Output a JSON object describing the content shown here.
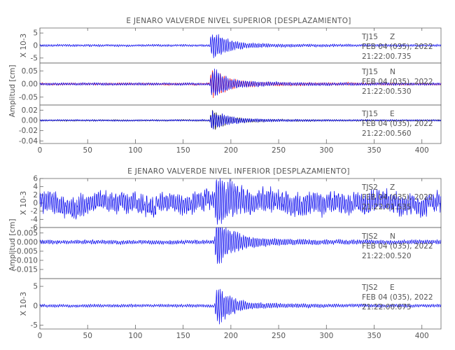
{
  "chart_data": [
    {
      "type": "line",
      "title": "E JENARO VALVERDE NIVEL SUPERIOR [DESPLAZAMIENTO]",
      "xlabel": "",
      "ylabel": "Amplitud [cm]",
      "xlim": [
        0,
        420
      ],
      "xticks": [
        "0",
        "50",
        "100",
        "150",
        "200",
        "250",
        "300",
        "350",
        "400"
      ],
      "grid": false,
      "panels": [
        {
          "name": "TJ15 Z",
          "station_label": "TJ15",
          "component_label": "Z",
          "date_label": "FEB 04 (035), 2022",
          "time_label": "21:22:00.735",
          "scale_label": "X 10-3",
          "ylim": [
            -7,
            7
          ],
          "yticks": [
            "5",
            "0",
            "-5"
          ],
          "series_colors": [
            "#0000ee"
          ],
          "arrival": 178,
          "peak": 7
        },
        {
          "name": "TJ15 N",
          "station_label": "TJ15",
          "component_label": "N",
          "date_label": "FEB 04 (035), 2022",
          "time_label": "21:22:00.530",
          "scale_label": "",
          "ylim": [
            -0.08,
            0.08
          ],
          "yticks": [
            "0.05",
            "0.00",
            "-0.05"
          ],
          "series_colors": [
            "#0000ee",
            "#ff0000"
          ],
          "arrival": 178,
          "peak": 0.075
        },
        {
          "name": "TJ15 E",
          "station_label": "TJ15",
          "component_label": "E",
          "date_label": "FEB 04 (035), 2022",
          "time_label": "21:22:00.560",
          "scale_label": "",
          "ylim": [
            -0.045,
            0.03
          ],
          "yticks": [
            "0.02",
            "0.00",
            "-0.02",
            "-0.04"
          ],
          "series_colors": [
            "#0000ee",
            "#000000"
          ],
          "arrival": 178,
          "peak": 0.025
        }
      ]
    },
    {
      "type": "line",
      "title": "E JENARO VALVERDE NIVEL INFERIOR [DESPLAZAMIENTO]",
      "xlabel": "",
      "ylabel": "Amplitud [cm]",
      "xlim": [
        0,
        420
      ],
      "xticks": [
        "0",
        "50",
        "100",
        "150",
        "200",
        "250",
        "300",
        "350",
        "400"
      ],
      "grid": false,
      "panels": [
        {
          "name": "TJS2 Z",
          "station_label": "TJS2",
          "component_label": "Z",
          "date_label": "FEB 04 (035), 2022",
          "time_label": "21:22:01.535",
          "scale_label": "X 10-3",
          "ylim": [
            -6,
            6
          ],
          "yticks": [
            "6",
            "4",
            "2",
            "0",
            "-2",
            "-4",
            "-6"
          ],
          "series_colors": [
            "#0000ee"
          ],
          "arrival": 183,
          "peak": 5.5
        },
        {
          "name": "TJS2 N",
          "station_label": "TJS2",
          "component_label": "N",
          "date_label": "FEB 04 (035), 2022",
          "time_label": "21:22:00.520",
          "scale_label": "",
          "ylim": [
            -0.02,
            0.008
          ],
          "yticks": [
            "0.005",
            "0.000",
            "-0.005",
            "-0.010",
            "-0.015"
          ],
          "series_colors": [
            "#0000ee"
          ],
          "arrival": 183,
          "peak": 0.018
        },
        {
          "name": "TJS2 E",
          "station_label": "TJS2",
          "component_label": "E",
          "date_label": "FEB 04 (035), 2022",
          "time_label": "21:22:00.675",
          "scale_label": "X 10-3",
          "ylim": [
            -6,
            7
          ],
          "yticks": [
            "5",
            "0",
            "-5"
          ],
          "series_colors": [
            "#0000ee"
          ],
          "arrival": 183,
          "peak": 6
        }
      ]
    }
  ]
}
